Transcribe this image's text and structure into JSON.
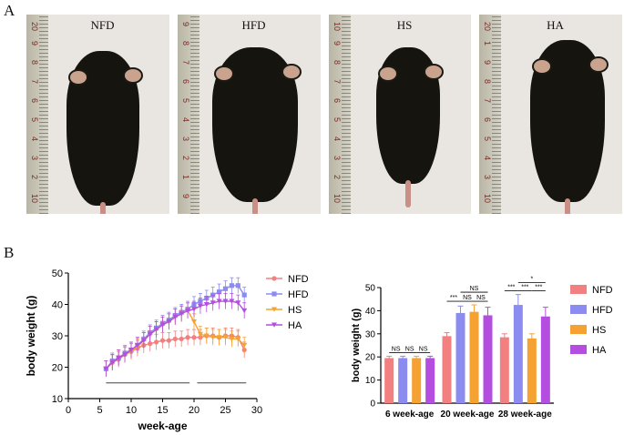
{
  "panel_a": {
    "letter": "A",
    "photos": [
      {
        "label": "NFD",
        "ruler": [
          "20",
          "9",
          "8",
          "7",
          "6",
          "5",
          "4",
          "3",
          "2",
          "10"
        ]
      },
      {
        "label": "HFD",
        "ruler": [
          "9",
          "8",
          "7",
          "6",
          "5",
          "4",
          "3",
          "2",
          "1",
          "9"
        ]
      },
      {
        "label": "HS",
        "ruler": [
          "10",
          "9",
          "8",
          "7",
          "6",
          "5",
          "4",
          "3",
          "2",
          "10"
        ]
      },
      {
        "label": "HA",
        "ruler": [
          "20",
          "1",
          "9",
          "8",
          "7",
          "6",
          "5",
          "4",
          "3",
          "10"
        ]
      }
    ]
  },
  "panel_b": {
    "letter": "B"
  },
  "chart_data": [
    {
      "type": "line",
      "xlabel": "week-age",
      "ylabel": "body weight (g)",
      "xlim": [
        0,
        30
      ],
      "ylim": [
        10,
        50
      ],
      "xticks": [
        "0",
        "5",
        "10",
        "15",
        "20",
        "25",
        "30"
      ],
      "yticks": [
        "10",
        "20",
        "30",
        "40",
        "50"
      ],
      "legend_position": "right",
      "x": [
        6,
        7,
        8,
        9,
        10,
        11,
        12,
        13,
        14,
        15,
        16,
        17,
        18,
        19,
        20,
        21,
        22,
        23,
        24,
        25,
        26,
        27,
        28
      ],
      "series": [
        {
          "name": "NFD",
          "color": "#f28080",
          "marker": "circle",
          "values": [
            19.5,
            21.5,
            22.5,
            24,
            25,
            26,
            27,
            27.5,
            28,
            28.5,
            28.5,
            29,
            29,
            29.5,
            29.5,
            29.5,
            30,
            30,
            29.5,
            30,
            30,
            29.5,
            25.5
          ]
        },
        {
          "name": "HFD",
          "color": "#8c8cf0",
          "marker": "square",
          "values": [
            19.5,
            22,
            23,
            24.5,
            25.5,
            27,
            29,
            31,
            32.5,
            34,
            35,
            36.5,
            37.5,
            38.5,
            40,
            41,
            42,
            43,
            44,
            45,
            46,
            46,
            43
          ]
        },
        {
          "name": "HS",
          "color": "#f5a233",
          "marker": "triangle-down",
          "values": [
            19.5,
            21.5,
            23,
            24,
            25,
            26.5,
            28.5,
            30.5,
            32,
            33.5,
            34.5,
            36,
            37,
            38,
            34.5,
            30.5,
            30,
            29.5,
            29.5,
            29.5,
            29,
            29,
            27
          ]
        },
        {
          "name": "HA",
          "color": "#b44ee0",
          "marker": "triangle-down",
          "values": [
            19.5,
            21.5,
            23,
            24,
            25.5,
            27,
            28.5,
            30.5,
            32,
            33.5,
            34.5,
            36,
            37,
            38,
            38.5,
            39.5,
            40,
            40.5,
            41,
            41,
            41,
            40.5,
            38
          ]
        }
      ],
      "error": 2.5
    },
    {
      "type": "bar",
      "xlabel": "",
      "ylabel": "body weight (g)",
      "ylim": [
        0,
        50
      ],
      "yticks": [
        "0",
        "10",
        "20",
        "30",
        "40",
        "50"
      ],
      "categories": [
        "6 week-age",
        "20 week-age",
        "28 week-age"
      ],
      "legend_position": "right",
      "series": [
        {
          "name": "NFD",
          "color": "#f28080",
          "values": [
            19.5,
            29,
            28.5
          ],
          "errors": [
            0.8,
            1.5,
            1.5
          ]
        },
        {
          "name": "HFD",
          "color": "#8c8cf0",
          "values": [
            19.5,
            39,
            42.5
          ],
          "errors": [
            0.8,
            3,
            4.5
          ]
        },
        {
          "name": "HS",
          "color": "#f5a233",
          "values": [
            19.5,
            39.5,
            28
          ],
          "errors": [
            0.8,
            3,
            2
          ]
        },
        {
          "name": "HA",
          "color": "#b44ee0",
          "values": [
            19.5,
            38,
            37.5
          ],
          "errors": [
            0.8,
            3.5,
            4
          ]
        }
      ],
      "annotations": [
        "NS",
        "NS",
        "NS",
        "***",
        "NS",
        "NS",
        "NS",
        "***",
        "***",
        "***",
        "*"
      ]
    }
  ]
}
